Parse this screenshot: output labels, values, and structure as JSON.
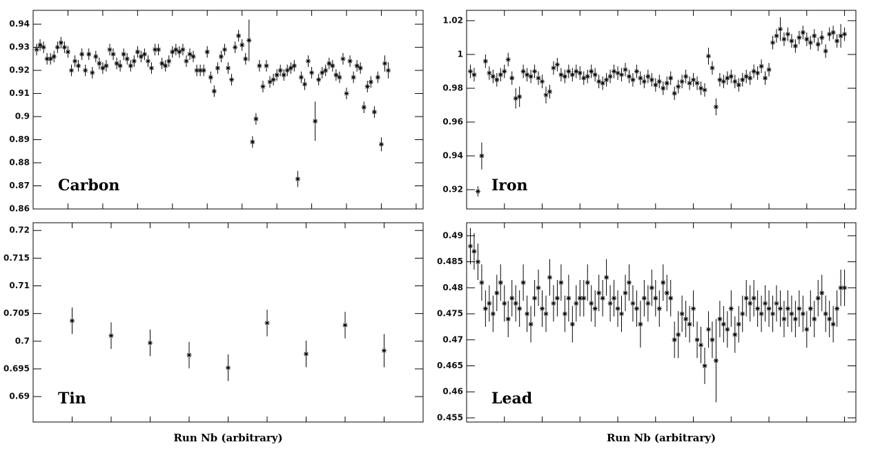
{
  "chart_data": [
    {
      "type": "scatter",
      "title": "Carbon",
      "xlim": [
        0,
        112
      ],
      "xticks": [
        0,
        10,
        20,
        30,
        40,
        50,
        60,
        70,
        80,
        90,
        100,
        110
      ],
      "ylim": [
        0.86,
        0.946
      ],
      "yticks": [
        0.86,
        0.87,
        0.88,
        0.89,
        0.9,
        0.91,
        0.92,
        0.93,
        0.94
      ],
      "color": "#000000",
      "x": [
        1,
        2,
        3,
        4,
        5,
        6,
        7,
        8,
        9,
        10,
        11,
        12,
        13,
        14,
        15,
        16,
        17,
        18,
        19,
        20,
        21,
        22,
        23,
        24,
        25,
        26,
        27,
        28,
        29,
        30,
        31,
        32,
        33,
        34,
        35,
        36,
        37,
        38,
        39,
        40,
        41,
        42,
        43,
        44,
        45,
        46,
        47,
        48,
        49,
        50,
        51,
        52,
        53,
        54,
        55,
        56,
        57,
        58,
        59,
        60,
        61,
        62,
        63,
        64,
        65,
        66,
        67,
        68,
        69,
        70,
        71,
        72,
        73,
        74,
        75,
        76,
        77,
        78,
        79,
        80,
        81,
        82,
        83,
        84,
        85,
        86,
        87,
        88,
        89,
        90,
        91,
        92,
        93,
        94,
        95,
        96,
        97,
        98,
        99,
        100,
        101,
        102
      ],
      "values": [
        0.929,
        0.931,
        0.93,
        0.925,
        0.925,
        0.926,
        0.93,
        0.932,
        0.93,
        0.928,
        0.92,
        0.924,
        0.922,
        0.927,
        0.92,
        0.927,
        0.919,
        0.926,
        0.923,
        0.921,
        0.922,
        0.929,
        0.927,
        0.923,
        0.922,
        0.927,
        0.925,
        0.922,
        0.924,
        0.928,
        0.926,
        0.927,
        0.924,
        0.921,
        0.929,
        0.929,
        0.923,
        0.922,
        0.924,
        0.928,
        0.929,
        0.928,
        0.929,
        0.924,
        0.927,
        0.926,
        0.92,
        0.92,
        0.92,
        0.928,
        0.917,
        0.911,
        0.921,
        0.926,
        0.929,
        0.921,
        0.916,
        0.93,
        0.935,
        0.931,
        0.925,
        0.933,
        0.889,
        0.899,
        0.922,
        0.913,
        0.922,
        0.915,
        0.916,
        0.918,
        0.92,
        0.918,
        0.92,
        0.921,
        0.922,
        0.873,
        0.917,
        0.914,
        0.924,
        0.919,
        0.898,
        0.916,
        0.919,
        0.92,
        0.923,
        0.922,
        0.918,
        0.917,
        0.925,
        0.91,
        0.924,
        0.917,
        0.922,
        0.921,
        0.904,
        0.913,
        0.915,
        0.902,
        0.917,
        0.888,
        0.923,
        0.92
      ],
      "errors": [
        0.0025,
        0.0025,
        0.0025,
        0.0025,
        0.0025,
        0.0025,
        0.0025,
        0.0025,
        0.0025,
        0.0025,
        0.0025,
        0.0025,
        0.0025,
        0.0025,
        0.0025,
        0.0025,
        0.0025,
        0.0025,
        0.0025,
        0.0025,
        0.0025,
        0.0025,
        0.0025,
        0.0025,
        0.0025,
        0.0025,
        0.0025,
        0.0025,
        0.0025,
        0.0025,
        0.0025,
        0.0025,
        0.0025,
        0.0025,
        0.0025,
        0.0025,
        0.0025,
        0.0025,
        0.0025,
        0.0025,
        0.0025,
        0.0025,
        0.0025,
        0.0025,
        0.0025,
        0.0025,
        0.0025,
        0.0025,
        0.0025,
        0.0025,
        0.0025,
        0.0025,
        0.0025,
        0.0025,
        0.0025,
        0.0025,
        0.0025,
        0.0025,
        0.0025,
        0.0025,
        0.0025,
        0.009,
        0.0025,
        0.0025,
        0.0025,
        0.0025,
        0.0025,
        0.0025,
        0.0025,
        0.0025,
        0.0025,
        0.0025,
        0.0025,
        0.0025,
        0.0025,
        0.0035,
        0.0025,
        0.0025,
        0.0025,
        0.0025,
        0.0085,
        0.0025,
        0.0025,
        0.0025,
        0.0025,
        0.0025,
        0.0025,
        0.0025,
        0.0025,
        0.0025,
        0.0025,
        0.0025,
        0.0025,
        0.0025,
        0.0025,
        0.0025,
        0.0025,
        0.0025,
        0.0025,
        0.003,
        0.0035,
        0.0035
      ]
    },
    {
      "type": "scatter",
      "title": "Iron",
      "xlim": [
        0,
        103
      ],
      "xticks": [
        0,
        10,
        20,
        30,
        40,
        50,
        60,
        70,
        80,
        90,
        100
      ],
      "ylim": [
        0.9086,
        1.0261
      ],
      "yticks": [
        0.92,
        0.94,
        0.96,
        0.98,
        1,
        1.02
      ],
      "color": "#000000",
      "x": [
        1,
        2,
        3,
        4,
        5,
        6,
        7,
        8,
        9,
        10,
        11,
        12,
        13,
        14,
        15,
        16,
        17,
        18,
        19,
        20,
        21,
        22,
        23,
        24,
        25,
        26,
        27,
        28,
        29,
        30,
        31,
        32,
        33,
        34,
        35,
        36,
        37,
        38,
        39,
        40,
        41,
        42,
        43,
        44,
        45,
        46,
        47,
        48,
        49,
        50,
        51,
        52,
        53,
        54,
        55,
        56,
        57,
        58,
        59,
        60,
        61,
        62,
        63,
        64,
        65,
        66,
        67,
        68,
        69,
        70,
        71,
        72,
        73,
        74,
        75,
        76,
        77,
        78,
        79,
        80,
        81,
        82,
        83,
        84,
        85,
        86,
        87,
        88,
        89,
        90,
        91,
        92,
        93,
        94,
        95,
        96,
        97,
        98,
        99,
        100
      ],
      "values": [
        0.99,
        0.988,
        0.919,
        0.94,
        0.996,
        0.989,
        0.987,
        0.985,
        0.988,
        0.99,
        0.997,
        0.986,
        0.974,
        0.975,
        0.99,
        0.988,
        0.987,
        0.99,
        0.986,
        0.984,
        0.976,
        0.978,
        0.992,
        0.994,
        0.988,
        0.987,
        0.99,
        0.988,
        0.99,
        0.989,
        0.986,
        0.987,
        0.99,
        0.988,
        0.984,
        0.983,
        0.985,
        0.987,
        0.99,
        0.989,
        0.988,
        0.991,
        0.987,
        0.985,
        0.99,
        0.986,
        0.984,
        0.987,
        0.985,
        0.982,
        0.984,
        0.98,
        0.983,
        0.986,
        0.977,
        0.981,
        0.984,
        0.987,
        0.983,
        0.985,
        0.983,
        0.98,
        0.979,
        0.999,
        0.992,
        0.969,
        0.985,
        0.984,
        0.986,
        0.987,
        0.984,
        0.982,
        0.985,
        0.987,
        0.986,
        0.99,
        0.989,
        0.993,
        0.986,
        0.991,
        1.007,
        1.011,
        1.015,
        1.009,
        1.012,
        1.008,
        1.005,
        1.01,
        1.013,
        1.009,
        1.007,
        1.011,
        1.006,
        1.01,
        1.002,
        1.012,
        1.013,
        1.008,
        1.011,
        1.012
      ],
      "errors": [
        0.004,
        0.004,
        0.003,
        0.008,
        0.004,
        0.004,
        0.004,
        0.004,
        0.004,
        0.004,
        0.004,
        0.004,
        0.006,
        0.006,
        0.004,
        0.004,
        0.004,
        0.004,
        0.004,
        0.004,
        0.005,
        0.004,
        0.004,
        0.004,
        0.004,
        0.004,
        0.004,
        0.004,
        0.004,
        0.004,
        0.004,
        0.004,
        0.004,
        0.004,
        0.004,
        0.004,
        0.004,
        0.004,
        0.004,
        0.004,
        0.004,
        0.004,
        0.004,
        0.004,
        0.004,
        0.004,
        0.004,
        0.004,
        0.004,
        0.004,
        0.004,
        0.004,
        0.004,
        0.004,
        0.004,
        0.004,
        0.004,
        0.004,
        0.004,
        0.004,
        0.004,
        0.004,
        0.004,
        0.005,
        0.004,
        0.005,
        0.004,
        0.004,
        0.004,
        0.004,
        0.004,
        0.004,
        0.004,
        0.004,
        0.004,
        0.004,
        0.004,
        0.004,
        0.004,
        0.004,
        0.004,
        0.004,
        0.007,
        0.004,
        0.004,
        0.004,
        0.004,
        0.004,
        0.004,
        0.004,
        0.004,
        0.004,
        0.004,
        0.004,
        0.004,
        0.004,
        0.004,
        0.004,
        0.007,
        0.004
      ]
    },
    {
      "type": "scatter",
      "title": "Tin",
      "xlabel": "Run Nb (arbitrary)",
      "xlim": [
        0,
        10
      ],
      "xticks": [
        0,
        1,
        2,
        3,
        4,
        5,
        6,
        7,
        8,
        9,
        10
      ],
      "ylim": [
        0.6854,
        0.7214
      ],
      "yticks": [
        0.69,
        0.695,
        0.7,
        0.705,
        0.71,
        0.715,
        0.72
      ],
      "color": "#000000",
      "x": [
        1,
        2,
        3,
        4,
        5,
        6,
        7,
        8,
        9
      ],
      "values": [
        0.7037,
        0.701,
        0.6997,
        0.6975,
        0.6952,
        0.7033,
        0.6977,
        0.7029,
        0.6983
      ],
      "errors": [
        0.0024,
        0.0024,
        0.0024,
        0.0024,
        0.0024,
        0.0024,
        0.0024,
        0.0024,
        0.003
      ]
    },
    {
      "type": "scatter",
      "title": "Lead",
      "xlabel": "Run Nb (arbitrary)",
      "xlim": [
        0,
        103
      ],
      "xticks": [
        0,
        10,
        20,
        30,
        40,
        50,
        60,
        70,
        80,
        90,
        100
      ],
      "ylim": [
        0.4542,
        0.4925
      ],
      "yticks": [
        0.455,
        0.46,
        0.465,
        0.47,
        0.475,
        0.48,
        0.485,
        0.49
      ],
      "color": "#000000",
      "x": [
        1,
        2,
        3,
        4,
        5,
        6,
        7,
        8,
        9,
        10,
        11,
        12,
        13,
        14,
        15,
        16,
        17,
        18,
        19,
        20,
        21,
        22,
        23,
        24,
        25,
        26,
        27,
        28,
        29,
        30,
        31,
        32,
        33,
        34,
        35,
        36,
        37,
        38,
        39,
        40,
        41,
        42,
        43,
        44,
        45,
        46,
        47,
        48,
        49,
        50,
        51,
        52,
        53,
        54,
        55,
        56,
        57,
        58,
        59,
        60,
        61,
        62,
        63,
        64,
        65,
        66,
        67,
        68,
        69,
        70,
        71,
        72,
        73,
        74,
        75,
        76,
        77,
        78,
        79,
        80,
        81,
        82,
        83,
        84,
        85,
        86,
        87,
        88,
        89,
        90,
        91,
        92,
        93,
        94,
        95,
        96,
        97,
        98,
        99,
        100
      ],
      "values": [
        0.488,
        0.487,
        0.485,
        0.481,
        0.476,
        0.477,
        0.475,
        0.479,
        0.481,
        0.477,
        0.474,
        0.478,
        0.477,
        0.476,
        0.481,
        0.475,
        0.473,
        0.478,
        0.48,
        0.476,
        0.475,
        0.482,
        0.477,
        0.478,
        0.481,
        0.475,
        0.478,
        0.473,
        0.477,
        0.478,
        0.478,
        0.481,
        0.477,
        0.476,
        0.479,
        0.478,
        0.482,
        0.477,
        0.478,
        0.476,
        0.475,
        0.479,
        0.481,
        0.477,
        0.476,
        0.473,
        0.478,
        0.477,
        0.48,
        0.478,
        0.476,
        0.481,
        0.479,
        0.478,
        0.47,
        0.471,
        0.475,
        0.474,
        0.473,
        0.476,
        0.47,
        0.469,
        0.465,
        0.472,
        0.47,
        0.466,
        0.474,
        0.473,
        0.472,
        0.476,
        0.471,
        0.473,
        0.475,
        0.478,
        0.477,
        0.478,
        0.476,
        0.475,
        0.477,
        0.476,
        0.475,
        0.477,
        0.476,
        0.474,
        0.476,
        0.475,
        0.474,
        0.476,
        0.475,
        0.472,
        0.476,
        0.474,
        0.478,
        0.479,
        0.475,
        0.474,
        0.473,
        0.476,
        0.48,
        0.48
      ],
      "errors": [
        0.0035,
        0.0035,
        0.0035,
        0.0035,
        0.0035,
        0.0035,
        0.0035,
        0.0035,
        0.0035,
        0.0035,
        0.0035,
        0.0035,
        0.0035,
        0.0035,
        0.0035,
        0.0035,
        0.0035,
        0.0035,
        0.0035,
        0.0035,
        0.0035,
        0.0035,
        0.0035,
        0.0035,
        0.0035,
        0.0035,
        0.0045,
        0.0035,
        0.0035,
        0.0035,
        0.0035,
        0.0035,
        0.0035,
        0.0035,
        0.0035,
        0.0035,
        0.0035,
        0.0035,
        0.0035,
        0.0035,
        0.0035,
        0.0035,
        0.0035,
        0.0035,
        0.0035,
        0.0045,
        0.0035,
        0.0035,
        0.0035,
        0.0035,
        0.0035,
        0.0035,
        0.0035,
        0.0035,
        0.0035,
        0.0045,
        0.0035,
        0.0035,
        0.0035,
        0.0035,
        0.0035,
        0.0035,
        0.0035,
        0.0035,
        0.0035,
        0.008,
        0.0035,
        0.0035,
        0.0035,
        0.0035,
        0.0035,
        0.0035,
        0.0035,
        0.0035,
        0.0035,
        0.0035,
        0.0035,
        0.0035,
        0.0035,
        0.0035,
        0.0035,
        0.0035,
        0.0035,
        0.0035,
        0.0035,
        0.0035,
        0.0035,
        0.0035,
        0.0035,
        0.0035,
        0.0035,
        0.0035,
        0.0035,
        0.0035,
        0.0035,
        0.0035,
        0.0035,
        0.0035,
        0.0035,
        0.0035
      ]
    }
  ]
}
